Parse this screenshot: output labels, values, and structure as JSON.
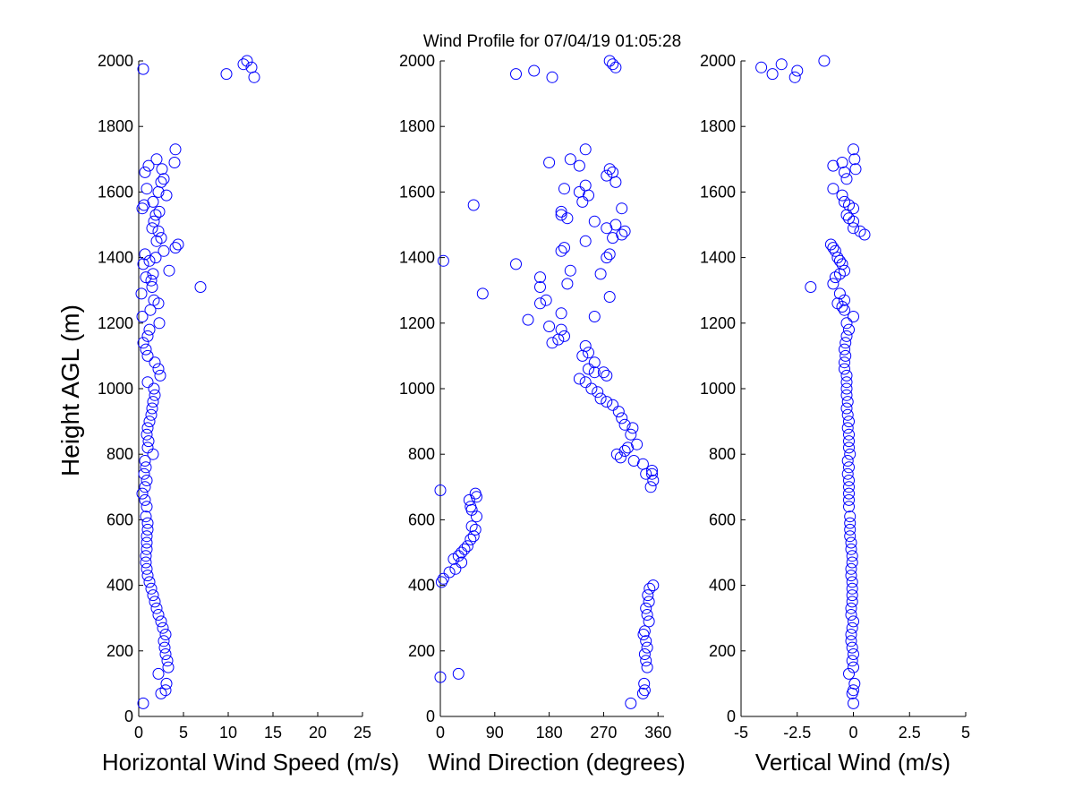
{
  "title": "Wind Profile for  07/04/19 01:05:28",
  "ylabel": "Height AGL (m)",
  "marker_color": "#0000ff",
  "chart_data": [
    {
      "type": "scatter",
      "xlabel": "Horizontal Wind Speed (m/s)",
      "xlim": [
        0,
        25
      ],
      "ylim": [
        0,
        2000
      ],
      "xticks": [
        0,
        5,
        10,
        15,
        20,
        25
      ],
      "xtick_labels": [
        "0",
        "5",
        "10",
        "15",
        "20",
        "25"
      ],
      "yticks": [
        0,
        200,
        400,
        600,
        800,
        1000,
        1200,
        1400,
        1600,
        1800,
        2000
      ],
      "ytick_labels": [
        "0",
        "200",
        "400",
        "600",
        "800",
        "1000",
        "1200",
        "1400",
        "1600",
        "1800",
        "2000"
      ],
      "points": [
        [
          0.5,
          40
        ],
        [
          2.5,
          70
        ],
        [
          3.0,
          80
        ],
        [
          3.1,
          100
        ],
        [
          2.2,
          130
        ],
        [
          3.3,
          150
        ],
        [
          3.2,
          170
        ],
        [
          3.0,
          190
        ],
        [
          2.9,
          210
        ],
        [
          2.8,
          230
        ],
        [
          3.0,
          250
        ],
        [
          2.7,
          270
        ],
        [
          2.5,
          290
        ],
        [
          2.2,
          310
        ],
        [
          2.0,
          330
        ],
        [
          1.8,
          350
        ],
        [
          1.6,
          370
        ],
        [
          1.4,
          390
        ],
        [
          1.2,
          410
        ],
        [
          1.0,
          430
        ],
        [
          0.9,
          450
        ],
        [
          0.8,
          470
        ],
        [
          0.8,
          490
        ],
        [
          0.9,
          510
        ],
        [
          0.9,
          530
        ],
        [
          0.9,
          550
        ],
        [
          1.0,
          570
        ],
        [
          1.0,
          590
        ],
        [
          0.8,
          610
        ],
        [
          0.9,
          640
        ],
        [
          0.7,
          660
        ],
        [
          0.4,
          680
        ],
        [
          0.7,
          700
        ],
        [
          0.9,
          720
        ],
        [
          0.6,
          740
        ],
        [
          0.8,
          760
        ],
        [
          0.7,
          780
        ],
        [
          1.6,
          800
        ],
        [
          1.0,
          820
        ],
        [
          1.1,
          840
        ],
        [
          0.9,
          860
        ],
        [
          1.0,
          880
        ],
        [
          1.2,
          900
        ],
        [
          1.4,
          920
        ],
        [
          1.5,
          940
        ],
        [
          1.6,
          960
        ],
        [
          1.8,
          980
        ],
        [
          1.7,
          1000
        ],
        [
          1.0,
          1020
        ],
        [
          2.4,
          1040
        ],
        [
          2.2,
          1060
        ],
        [
          1.8,
          1080
        ],
        [
          1.0,
          1100
        ],
        [
          0.8,
          1120
        ],
        [
          0.5,
          1140
        ],
        [
          1.0,
          1160
        ],
        [
          1.2,
          1180
        ],
        [
          2.3,
          1200
        ],
        [
          0.4,
          1220
        ],
        [
          1.3,
          1240
        ],
        [
          2.2,
          1260
        ],
        [
          1.7,
          1270
        ],
        [
          0.3,
          1290
        ],
        [
          1.5,
          1310
        ],
        [
          6.9,
          1310
        ],
        [
          1.4,
          1330
        ],
        [
          0.8,
          1340
        ],
        [
          1.6,
          1350
        ],
        [
          3.4,
          1360
        ],
        [
          0.5,
          1380
        ],
        [
          1.2,
          1390
        ],
        [
          1.9,
          1400
        ],
        [
          0.7,
          1410
        ],
        [
          2.8,
          1420
        ],
        [
          4.1,
          1430
        ],
        [
          4.4,
          1440
        ],
        [
          2.0,
          1450
        ],
        [
          2.5,
          1460
        ],
        [
          2.2,
          1480
        ],
        [
          1.5,
          1490
        ],
        [
          1.7,
          1510
        ],
        [
          1.9,
          1530
        ],
        [
          2.3,
          1540
        ],
        [
          0.6,
          1560
        ],
        [
          0.4,
          1550
        ],
        [
          1.6,
          1570
        ],
        [
          3.1,
          1590
        ],
        [
          2.2,
          1600
        ],
        [
          0.9,
          1610
        ],
        [
          2.8,
          1640
        ],
        [
          2.5,
          1630
        ],
        [
          0.7,
          1660
        ],
        [
          2.6,
          1670
        ],
        [
          1.1,
          1680
        ],
        [
          2.0,
          1700
        ],
        [
          4.0,
          1690
        ],
        [
          4.1,
          1730
        ],
        [
          9.8,
          1960
        ],
        [
          11.7,
          1990
        ],
        [
          12.1,
          2000
        ],
        [
          12.6,
          1980
        ],
        [
          12.9,
          1950
        ],
        [
          0.5,
          1975
        ]
      ]
    },
    {
      "type": "scatter",
      "xlabel": "Wind Direction (degrees)",
      "xlim": [
        0,
        370
      ],
      "ylim": [
        0,
        2000
      ],
      "xticks": [
        0,
        90,
        180,
        270,
        360
      ],
      "xtick_labels": [
        "0",
        "90",
        "180",
        "270",
        "360"
      ],
      "yticks": [
        0,
        200,
        400,
        600,
        800,
        1000,
        1200,
        1400,
        1600,
        1800,
        2000
      ],
      "ytick_labels": [
        "0",
        "200",
        "400",
        "600",
        "800",
        "1000",
        "1200",
        "1400",
        "1600",
        "1800",
        "2000"
      ],
      "points": [
        [
          315,
          40
        ],
        [
          335,
          70
        ],
        [
          338,
          80
        ],
        [
          337,
          100
        ],
        [
          0,
          120
        ],
        [
          30,
          130
        ],
        [
          342,
          150
        ],
        [
          340,
          170
        ],
        [
          338,
          190
        ],
        [
          342,
          210
        ],
        [
          340,
          230
        ],
        [
          336,
          250
        ],
        [
          338,
          260
        ],
        [
          345,
          290
        ],
        [
          342,
          310
        ],
        [
          340,
          330
        ],
        [
          345,
          350
        ],
        [
          343,
          370
        ],
        [
          346,
          390
        ],
        [
          352,
          400
        ],
        [
          2,
          410
        ],
        [
          5,
          420
        ],
        [
          15,
          440
        ],
        [
          25,
          450
        ],
        [
          35,
          470
        ],
        [
          22,
          480
        ],
        [
          30,
          490
        ],
        [
          35,
          500
        ],
        [
          40,
          510
        ],
        [
          45,
          520
        ],
        [
          50,
          540
        ],
        [
          55,
          550
        ],
        [
          58,
          570
        ],
        [
          52,
          580
        ],
        [
          60,
          610
        ],
        [
          52,
          630
        ],
        [
          50,
          640
        ],
        [
          48,
          660
        ],
        [
          60,
          670
        ],
        [
          58,
          680
        ],
        [
          0,
          690
        ],
        [
          348,
          700
        ],
        [
          352,
          720
        ],
        [
          350,
          740
        ],
        [
          340,
          740
        ],
        [
          350,
          750
        ],
        [
          335,
          770
        ],
        [
          320,
          780
        ],
        [
          298,
          790
        ],
        [
          292,
          800
        ],
        [
          305,
          810
        ],
        [
          310,
          820
        ],
        [
          325,
          830
        ],
        [
          315,
          860
        ],
        [
          318,
          880
        ],
        [
          305,
          890
        ],
        [
          300,
          910
        ],
        [
          295,
          930
        ],
        [
          285,
          950
        ],
        [
          275,
          960
        ],
        [
          265,
          970
        ],
        [
          260,
          990
        ],
        [
          250,
          1000
        ],
        [
          240,
          1020
        ],
        [
          230,
          1030
        ],
        [
          255,
          1050
        ],
        [
          270,
          1050
        ],
        [
          275,
          1040
        ],
        [
          245,
          1060
        ],
        [
          255,
          1080
        ],
        [
          235,
          1100
        ],
        [
          245,
          1110
        ],
        [
          240,
          1130
        ],
        [
          185,
          1140
        ],
        [
          195,
          1150
        ],
        [
          205,
          1160
        ],
        [
          200,
          1180
        ],
        [
          180,
          1190
        ],
        [
          145,
          1210
        ],
        [
          255,
          1220
        ],
        [
          200,
          1230
        ],
        [
          165,
          1260
        ],
        [
          175,
          1270
        ],
        [
          280,
          1280
        ],
        [
          70,
          1290
        ],
        [
          165,
          1310
        ],
        [
          210,
          1320
        ],
        [
          165,
          1340
        ],
        [
          265,
          1350
        ],
        [
          215,
          1360
        ],
        [
          125,
          1380
        ],
        [
          5,
          1390
        ],
        [
          275,
          1400
        ],
        [
          280,
          1410
        ],
        [
          200,
          1420
        ],
        [
          205,
          1430
        ],
        [
          240,
          1450
        ],
        [
          285,
          1460
        ],
        [
          300,
          1470
        ],
        [
          305,
          1480
        ],
        [
          275,
          1490
        ],
        [
          290,
          1500
        ],
        [
          255,
          1510
        ],
        [
          210,
          1520
        ],
        [
          200,
          1530
        ],
        [
          200,
          1540
        ],
        [
          300,
          1550
        ],
        [
          55,
          1560
        ],
        [
          235,
          1570
        ],
        [
          245,
          1590
        ],
        [
          230,
          1600
        ],
        [
          205,
          1610
        ],
        [
          240,
          1620
        ],
        [
          290,
          1630
        ],
        [
          275,
          1650
        ],
        [
          285,
          1660
        ],
        [
          280,
          1670
        ],
        [
          230,
          1680
        ],
        [
          180,
          1690
        ],
        [
          215,
          1700
        ],
        [
          240,
          1730
        ],
        [
          125,
          1960
        ],
        [
          155,
          1970
        ],
        [
          185,
          1950
        ],
        [
          280,
          2000
        ],
        [
          285,
          1990
        ],
        [
          290,
          1980
        ]
      ]
    },
    {
      "type": "scatter",
      "xlabel": "Vertical Wind (m/s)",
      "xlim": [
        -5,
        5
      ],
      "ylim": [
        0,
        2000
      ],
      "xticks": [
        -5,
        -2.5,
        0,
        2.5,
        5
      ],
      "xtick_labels": [
        "-5",
        "-2.5",
        "0",
        "2.5",
        "5"
      ],
      "yticks": [
        0,
        200,
        400,
        600,
        800,
        1000,
        1200,
        1400,
        1600,
        1800,
        2000
      ],
      "ytick_labels": [
        "0",
        "200",
        "400",
        "600",
        "800",
        "1000",
        "1200",
        "1400",
        "1600",
        "1800",
        "2000"
      ],
      "points": [
        [
          0.0,
          40
        ],
        [
          -0.05,
          70
        ],
        [
          0.0,
          80
        ],
        [
          0.05,
          100
        ],
        [
          -0.2,
          130
        ],
        [
          0.0,
          150
        ],
        [
          -0.05,
          170
        ],
        [
          0.0,
          190
        ],
        [
          -0.05,
          210
        ],
        [
          -0.1,
          230
        ],
        [
          -0.1,
          250
        ],
        [
          -0.05,
          270
        ],
        [
          0.0,
          290
        ],
        [
          -0.1,
          310
        ],
        [
          -0.1,
          330
        ],
        [
          -0.05,
          350
        ],
        [
          -0.05,
          370
        ],
        [
          -0.05,
          390
        ],
        [
          -0.05,
          410
        ],
        [
          -0.1,
          430
        ],
        [
          -0.1,
          450
        ],
        [
          -0.05,
          470
        ],
        [
          -0.05,
          490
        ],
        [
          -0.1,
          510
        ],
        [
          -0.1,
          530
        ],
        [
          -0.15,
          550
        ],
        [
          -0.15,
          570
        ],
        [
          -0.15,
          590
        ],
        [
          -0.15,
          610
        ],
        [
          -0.2,
          640
        ],
        [
          -0.2,
          660
        ],
        [
          -0.2,
          680
        ],
        [
          -0.2,
          700
        ],
        [
          -0.2,
          720
        ],
        [
          -0.25,
          740
        ],
        [
          -0.2,
          760
        ],
        [
          -0.25,
          780
        ],
        [
          -0.15,
          800
        ],
        [
          -0.2,
          820
        ],
        [
          -0.2,
          840
        ],
        [
          -0.2,
          860
        ],
        [
          -0.25,
          880
        ],
        [
          -0.2,
          900
        ],
        [
          -0.25,
          920
        ],
        [
          -0.3,
          940
        ],
        [
          -0.25,
          960
        ],
        [
          -0.3,
          980
        ],
        [
          -0.3,
          1000
        ],
        [
          -0.3,
          1020
        ],
        [
          -0.3,
          1040
        ],
        [
          -0.4,
          1060
        ],
        [
          -0.4,
          1080
        ],
        [
          -0.35,
          1100
        ],
        [
          -0.4,
          1120
        ],
        [
          -0.35,
          1140
        ],
        [
          -0.3,
          1160
        ],
        [
          -0.2,
          1180
        ],
        [
          -0.3,
          1200
        ],
        [
          0.0,
          1220
        ],
        [
          -0.4,
          1240
        ],
        [
          -0.5,
          1250
        ],
        [
          -0.7,
          1260
        ],
        [
          -0.4,
          1270
        ],
        [
          -0.6,
          1290
        ],
        [
          -1.9,
          1310
        ],
        [
          -0.9,
          1320
        ],
        [
          -0.8,
          1340
        ],
        [
          -0.6,
          1350
        ],
        [
          -0.4,
          1360
        ],
        [
          -0.5,
          1380
        ],
        [
          -0.6,
          1390
        ],
        [
          -0.7,
          1400
        ],
        [
          -0.8,
          1420
        ],
        [
          -0.9,
          1430
        ],
        [
          -1.0,
          1440
        ],
        [
          0.5,
          1470
        ],
        [
          0.3,
          1480
        ],
        [
          0.0,
          1490
        ],
        [
          0.0,
          1510
        ],
        [
          -0.2,
          1520
        ],
        [
          -0.3,
          1530
        ],
        [
          0.0,
          1550
        ],
        [
          -0.2,
          1560
        ],
        [
          -0.4,
          1570
        ],
        [
          -0.5,
          1590
        ],
        [
          -0.9,
          1610
        ],
        [
          -0.3,
          1640
        ],
        [
          -0.4,
          1660
        ],
        [
          0.1,
          1670
        ],
        [
          -0.9,
          1680
        ],
        [
          -0.5,
          1690
        ],
        [
          0.05,
          1700
        ],
        [
          0.0,
          1730
        ],
        [
          -4.1,
          1980
        ],
        [
          -3.6,
          1960
        ],
        [
          -3.2,
          1990
        ],
        [
          -2.6,
          1950
        ],
        [
          -2.5,
          1970
        ],
        [
          -1.3,
          2000
        ]
      ]
    }
  ]
}
